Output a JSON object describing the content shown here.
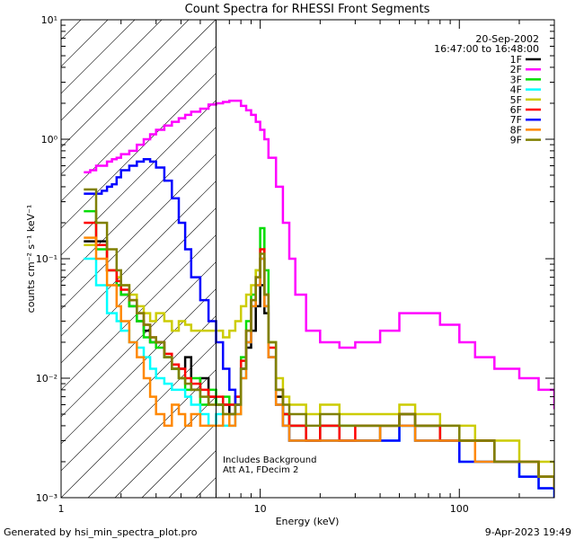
{
  "chart_data": {
    "type": "line",
    "title": "Count Spectra for RHESSI Front Segments",
    "xlabel": "Energy (keV)",
    "ylabel": "counts cm⁻² s⁻¹ keV⁻¹",
    "xscale": "log",
    "yscale": "log",
    "xlim": [
      1,
      300
    ],
    "ylim": [
      0.001,
      10
    ],
    "x_ticks": [
      {
        "value": 1,
        "label": "1"
      },
      {
        "value": 10,
        "label": "10"
      },
      {
        "value": 100,
        "label": "100"
      }
    ],
    "y_ticks": [
      {
        "value": 0.001,
        "label": "10⁻³"
      },
      {
        "value": 0.01,
        "label": "10⁻²"
      },
      {
        "value": 0.1,
        "label": "10⁻¹"
      },
      {
        "value": 1,
        "label": "10⁰"
      },
      {
        "value": 10,
        "label": "10¹"
      }
    ],
    "date": "20-Sep-2002",
    "time_range": "16:47:00 to 16:48:00",
    "shaded_region_max_energy": 6,
    "annotation_lines": [
      "Includes Background",
      "Att A1, FDecim 2"
    ],
    "series": [
      {
        "name": "1F",
        "color": "#000000",
        "energies": [
          1.3,
          1.4,
          1.5,
          1.6,
          1.7,
          1.8,
          1.9,
          2.0,
          2.2,
          2.4,
          2.6,
          2.8,
          3.0,
          3.3,
          3.6,
          3.9,
          4.2,
          4.5,
          5,
          5.5,
          6,
          6.5,
          7,
          7.5,
          8,
          8.5,
          9,
          9.5,
          10,
          10.5,
          11,
          12,
          13,
          14,
          15,
          17,
          20,
          25,
          30,
          40,
          50,
          60,
          80,
          100,
          120,
          150,
          200,
          250,
          300
        ],
        "values": [
          0.14,
          0.14,
          0.14,
          0.14,
          0.08,
          0.08,
          0.06,
          0.05,
          0.04,
          0.03,
          0.025,
          0.02,
          0.02,
          0.015,
          0.012,
          0.012,
          0.015,
          0.008,
          0.01,
          0.007,
          0.006,
          0.006,
          0.005,
          0.006,
          0.012,
          0.018,
          0.025,
          0.04,
          0.06,
          0.035,
          0.015,
          0.007,
          0.005,
          0.004,
          0.004,
          0.003,
          0.004,
          0.003,
          0.003,
          0.004,
          0.005,
          0.004,
          0.003,
          0.003,
          0.003,
          0.002,
          0.002,
          0.0015,
          0.0012
        ]
      },
      {
        "name": "2F",
        "color": "#ff00ff",
        "energies": [
          1.3,
          1.4,
          1.5,
          1.6,
          1.7,
          1.8,
          1.9,
          2.0,
          2.2,
          2.4,
          2.6,
          2.8,
          3.0,
          3.3,
          3.6,
          3.9,
          4.2,
          4.5,
          5,
          5.5,
          6,
          6.5,
          7,
          7.5,
          8,
          8.5,
          9,
          9.5,
          10,
          10.5,
          11,
          12,
          13,
          14,
          15,
          17,
          20,
          25,
          30,
          40,
          50,
          60,
          80,
          100,
          120,
          150,
          200,
          250,
          300
        ],
        "values": [
          0.53,
          0.55,
          0.6,
          0.6,
          0.65,
          0.68,
          0.7,
          0.75,
          0.8,
          0.9,
          1.0,
          1.1,
          1.2,
          1.3,
          1.4,
          1.5,
          1.6,
          1.7,
          1.8,
          1.95,
          2.0,
          2.05,
          2.1,
          2.1,
          1.9,
          1.75,
          1.6,
          1.4,
          1.2,
          1.0,
          0.7,
          0.4,
          0.2,
          0.1,
          0.05,
          0.025,
          0.02,
          0.018,
          0.02,
          0.025,
          0.035,
          0.035,
          0.028,
          0.02,
          0.015,
          0.012,
          0.01,
          0.008,
          0.0055
        ]
      },
      {
        "name": "3F",
        "color": "#00dd00",
        "energies": [
          1.3,
          1.4,
          1.5,
          1.6,
          1.7,
          1.8,
          1.9,
          2.0,
          2.2,
          2.4,
          2.6,
          2.8,
          3.0,
          3.3,
          3.6,
          3.9,
          4.2,
          4.5,
          5,
          5.5,
          6,
          6.5,
          7,
          7.5,
          8,
          8.5,
          9,
          9.5,
          10,
          10.5,
          11,
          12,
          13,
          14,
          15,
          17,
          20,
          25,
          30,
          40,
          50,
          60,
          80,
          100,
          120,
          150,
          200,
          250,
          300
        ],
        "values": [
          0.25,
          0.25,
          0.12,
          0.12,
          0.08,
          0.08,
          0.06,
          0.05,
          0.04,
          0.03,
          0.022,
          0.02,
          0.018,
          0.015,
          0.012,
          0.01,
          0.008,
          0.01,
          0.006,
          0.008,
          0.006,
          0.007,
          0.006,
          0.007,
          0.015,
          0.03,
          0.05,
          0.08,
          0.18,
          0.08,
          0.02,
          0.008,
          0.005,
          0.004,
          0.004,
          0.003,
          0.004,
          0.004,
          0.004,
          0.004,
          0.005,
          0.004,
          0.003,
          0.003,
          0.003,
          0.002,
          0.002,
          0.0015,
          0.0012
        ]
      },
      {
        "name": "4F",
        "color": "#00ffff",
        "energies": [
          1.3,
          1.4,
          1.5,
          1.6,
          1.7,
          1.8,
          1.9,
          2.0,
          2.2,
          2.4,
          2.6,
          2.8,
          3.0,
          3.3,
          3.6,
          3.9,
          4.2,
          4.5,
          5,
          5.5,
          6,
          6.5,
          7,
          7.5,
          8,
          8.5,
          9,
          9.5,
          10,
          10.5,
          11,
          12,
          13,
          14,
          15,
          17,
          20,
          25,
          30,
          40,
          50,
          60,
          80,
          100,
          120,
          150,
          200,
          250,
          300
        ],
        "values": [
          0.1,
          0.1,
          0.06,
          0.06,
          0.035,
          0.035,
          0.03,
          0.025,
          0.02,
          0.018,
          0.015,
          0.012,
          0.01,
          0.009,
          0.008,
          0.008,
          0.007,
          0.006,
          0.005,
          0.004,
          0.005,
          0.004,
          0.004,
          0.005,
          0.01,
          0.02,
          0.04,
          0.06,
          0.1,
          0.04,
          0.015,
          0.006,
          0.004,
          0.003,
          0.003,
          0.003,
          0.003,
          0.003,
          0.003,
          0.003,
          0.004,
          0.003,
          0.003,
          0.002,
          0.002,
          0.002,
          0.0015,
          0.0012,
          0.001
        ]
      },
      {
        "name": "5F",
        "color": "#cccc00",
        "energies": [
          1.3,
          1.4,
          1.5,
          1.6,
          1.7,
          1.8,
          1.9,
          2.0,
          2.2,
          2.4,
          2.6,
          2.8,
          3.0,
          3.3,
          3.6,
          3.9,
          4.2,
          4.5,
          5,
          5.5,
          6,
          6.5,
          7,
          7.5,
          8,
          8.5,
          9,
          9.5,
          10,
          10.5,
          11,
          12,
          13,
          14,
          15,
          17,
          20,
          25,
          30,
          40,
          50,
          60,
          80,
          100,
          120,
          150,
          200,
          250,
          300
        ],
        "values": [
          0.13,
          0.13,
          0.13,
          0.13,
          0.08,
          0.08,
          0.07,
          0.06,
          0.05,
          0.04,
          0.035,
          0.03,
          0.035,
          0.03,
          0.025,
          0.03,
          0.028,
          0.025,
          0.025,
          0.025,
          0.025,
          0.022,
          0.025,
          0.03,
          0.04,
          0.05,
          0.06,
          0.08,
          0.1,
          0.05,
          0.02,
          0.01,
          0.007,
          0.006,
          0.006,
          0.005,
          0.006,
          0.005,
          0.005,
          0.005,
          0.006,
          0.005,
          0.004,
          0.004,
          0.003,
          0.003,
          0.002,
          0.002,
          0.0015
        ]
      },
      {
        "name": "6F",
        "color": "#ff0000",
        "energies": [
          1.3,
          1.4,
          1.5,
          1.6,
          1.7,
          1.8,
          1.9,
          2.0,
          2.2,
          2.4,
          2.6,
          2.8,
          3.0,
          3.3,
          3.6,
          3.9,
          4.2,
          4.5,
          5,
          5.5,
          6,
          6.5,
          7,
          7.5,
          8,
          8.5,
          9,
          9.5,
          10,
          10.5,
          11,
          12,
          13,
          14,
          15,
          17,
          20,
          25,
          30,
          40,
          50,
          60,
          80,
          100,
          120,
          150,
          200,
          250,
          300
        ],
        "values": [
          0.2,
          0.2,
          0.13,
          0.13,
          0.08,
          0.08,
          0.065,
          0.055,
          0.045,
          0.035,
          0.028,
          0.022,
          0.02,
          0.016,
          0.013,
          0.012,
          0.01,
          0.009,
          0.008,
          0.007,
          0.007,
          0.006,
          0.006,
          0.007,
          0.014,
          0.025,
          0.045,
          0.07,
          0.12,
          0.05,
          0.018,
          0.008,
          0.005,
          0.004,
          0.004,
          0.003,
          0.004,
          0.003,
          0.004,
          0.004,
          0.005,
          0.004,
          0.003,
          0.003,
          0.003,
          0.002,
          0.002,
          0.0015,
          0.0012
        ]
      },
      {
        "name": "7F",
        "color": "#0000ff",
        "energies": [
          1.3,
          1.4,
          1.5,
          1.6,
          1.7,
          1.8,
          1.9,
          2.0,
          2.2,
          2.4,
          2.6,
          2.8,
          3.0,
          3.3,
          3.6,
          3.9,
          4.2,
          4.5,
          5,
          5.5,
          6,
          6.5,
          7,
          7.5,
          8,
          8.5,
          9,
          9.5,
          10,
          10.5,
          11,
          12,
          13,
          14,
          15,
          17,
          20,
          25,
          30,
          40,
          50,
          60,
          80,
          100,
          120,
          150,
          200,
          250,
          300
        ],
        "values": [
          0.35,
          0.35,
          0.35,
          0.37,
          0.4,
          0.42,
          0.48,
          0.55,
          0.6,
          0.65,
          0.68,
          0.65,
          0.58,
          0.45,
          0.32,
          0.2,
          0.12,
          0.07,
          0.045,
          0.03,
          0.02,
          0.012,
          0.008,
          0.006,
          0.012,
          0.02,
          0.04,
          0.06,
          0.1,
          0.04,
          0.015,
          0.006,
          0.004,
          0.003,
          0.003,
          0.003,
          0.003,
          0.003,
          0.003,
          0.003,
          0.004,
          0.003,
          0.003,
          0.002,
          0.002,
          0.002,
          0.0015,
          0.0012,
          0.001
        ]
      },
      {
        "name": "8F",
        "color": "#ff8800",
        "energies": [
          1.3,
          1.4,
          1.5,
          1.6,
          1.7,
          1.8,
          1.9,
          2.0,
          2.2,
          2.4,
          2.6,
          2.8,
          3.0,
          3.3,
          3.6,
          3.9,
          4.2,
          4.5,
          5,
          5.5,
          6,
          6.5,
          7,
          7.5,
          8,
          8.5,
          9,
          9.5,
          10,
          10.5,
          11,
          12,
          13,
          14,
          15,
          17,
          20,
          25,
          30,
          40,
          50,
          60,
          80,
          100,
          120,
          150,
          200,
          250,
          300
        ],
        "values": [
          0.15,
          0.15,
          0.1,
          0.1,
          0.06,
          0.06,
          0.04,
          0.03,
          0.02,
          0.015,
          0.01,
          0.007,
          0.005,
          0.004,
          0.006,
          0.005,
          0.004,
          0.005,
          0.004,
          0.004,
          0.004,
          0.005,
          0.004,
          0.005,
          0.01,
          0.02,
          0.04,
          0.06,
          0.1,
          0.04,
          0.015,
          0.006,
          0.004,
          0.003,
          0.003,
          0.003,
          0.003,
          0.003,
          0.003,
          0.004,
          0.004,
          0.003,
          0.003,
          0.003,
          0.002,
          0.002,
          0.002,
          0.0015,
          0.0012
        ]
      },
      {
        "name": "9F",
        "color": "#808000",
        "energies": [
          1.3,
          1.4,
          1.5,
          1.6,
          1.7,
          1.8,
          1.9,
          2.0,
          2.2,
          2.4,
          2.6,
          2.8,
          3.0,
          3.3,
          3.6,
          3.9,
          4.2,
          4.5,
          5,
          5.5,
          6,
          6.5,
          7,
          7.5,
          8,
          8.5,
          9,
          9.5,
          10,
          10.5,
          11,
          12,
          13,
          14,
          15,
          17,
          20,
          25,
          30,
          40,
          50,
          60,
          80,
          100,
          120,
          150,
          200,
          250,
          300
        ],
        "values": [
          0.38,
          0.38,
          0.2,
          0.2,
          0.12,
          0.12,
          0.08,
          0.06,
          0.045,
          0.035,
          0.028,
          0.022,
          0.02,
          0.015,
          0.012,
          0.01,
          0.009,
          0.008,
          0.007,
          0.006,
          0.006,
          0.005,
          0.005,
          0.006,
          0.012,
          0.025,
          0.045,
          0.07,
          0.11,
          0.05,
          0.02,
          0.008,
          0.006,
          0.005,
          0.005,
          0.004,
          0.005,
          0.004,
          0.004,
          0.004,
          0.005,
          0.004,
          0.004,
          0.003,
          0.003,
          0.002,
          0.002,
          0.0015,
          0.0012
        ]
      }
    ]
  },
  "footer": {
    "left": "Generated by hsi_min_spectra_plot.pro",
    "right": "9-Apr-2023 19:49"
  }
}
